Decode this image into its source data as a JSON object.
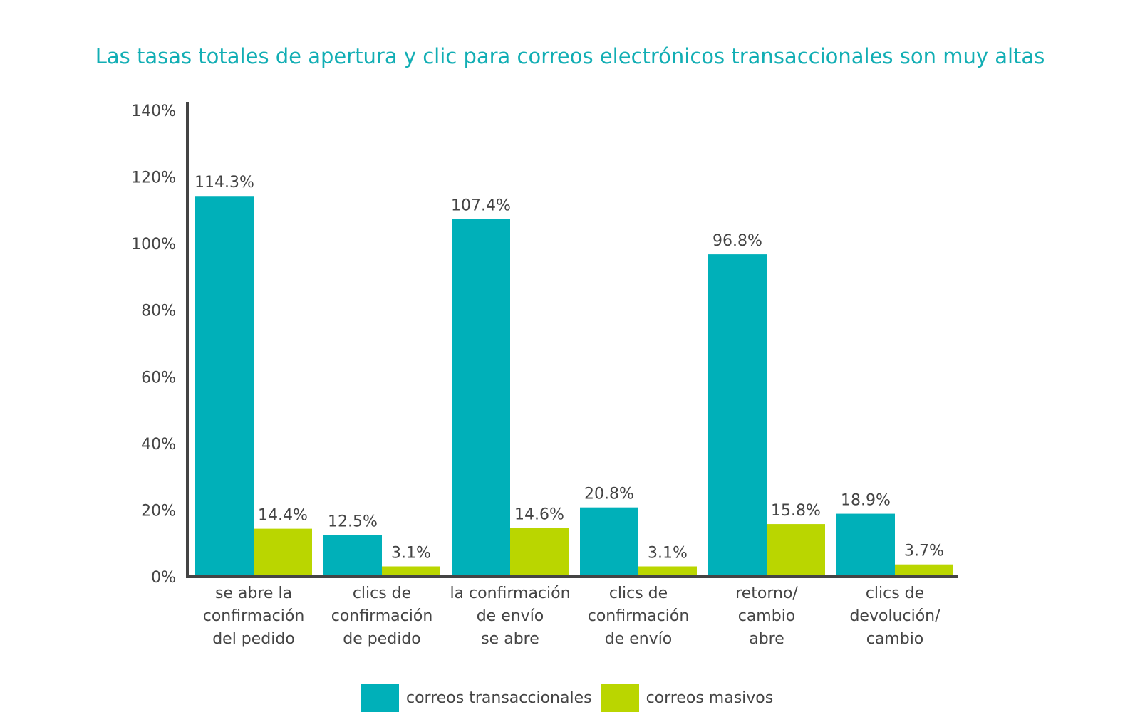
{
  "chart_data": {
    "type": "bar",
    "title": "Las tasas totales de apertura y clic para correos electrónicos transaccionales son muy altas",
    "xlabel": "",
    "ylabel": "",
    "ylim": [
      0,
      140
    ],
    "yticks": [
      "0%",
      "20%",
      "40%",
      "60%",
      "80%",
      "100%",
      "120%",
      "140%"
    ],
    "categories": [
      [
        "se abre la",
        "confirmación",
        "del pedido"
      ],
      [
        "clics de",
        "confirmación",
        "de pedido"
      ],
      [
        "la confirmación",
        "de envío",
        "se abre"
      ],
      [
        "clics de",
        "confirmación",
        "de envío"
      ],
      [
        "retorno/",
        "cambio",
        "abre"
      ],
      [
        "clics de",
        "devolución/",
        "cambio"
      ]
    ],
    "series": [
      {
        "name": "correos transaccionales",
        "color": "#00b0b9",
        "values": [
          114.3,
          12.5,
          107.4,
          20.8,
          96.8,
          18.9
        ],
        "labels": [
          "114.3%",
          "12.5%",
          "107.4%",
          "20.8%",
          "96.8%",
          "18.9%"
        ]
      },
      {
        "name": "correos masivos",
        "color": "#bad600",
        "values": [
          14.4,
          3.1,
          14.6,
          3.1,
          15.8,
          3.7
        ],
        "labels": [
          "14.4%",
          "3.1%",
          "14.6%",
          "3.1%",
          "15.8%",
          "3.7%"
        ]
      }
    ],
    "grid": false,
    "legend_position": "bottom"
  }
}
